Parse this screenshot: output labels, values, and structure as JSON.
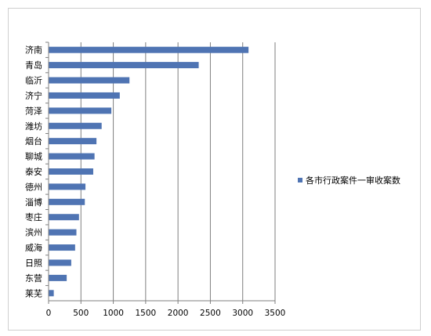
{
  "chart_data": {
    "type": "bar",
    "orientation": "horizontal",
    "title": "",
    "xlabel": "",
    "ylabel": "",
    "categories": [
      "济南",
      "青岛",
      "临沂",
      "济宁",
      "菏泽",
      "潍坊",
      "烟台",
      "聊城",
      "泰安",
      "德州",
      "淄博",
      "枣庄",
      "滨州",
      "威海",
      "日照",
      "东营",
      "莱芜"
    ],
    "series": [
      {
        "name": "各市行政案件一审收案数",
        "values": [
          3090,
          2320,
          1250,
          1100,
          970,
          820,
          740,
          710,
          690,
          570,
          560,
          470,
          430,
          410,
          350,
          280,
          80
        ]
      }
    ],
    "xlim": [
      0,
      3500
    ],
    "xticks": [
      "0",
      "500",
      "1000",
      "1500",
      "2000",
      "2500",
      "3000",
      "3500"
    ],
    "grid": true,
    "legend_position": "right",
    "colors": {
      "bar": "#4f74b3",
      "grid": "#7f7f7f",
      "axis": "#7f7f7f",
      "frame": "#cfcfcf"
    }
  }
}
